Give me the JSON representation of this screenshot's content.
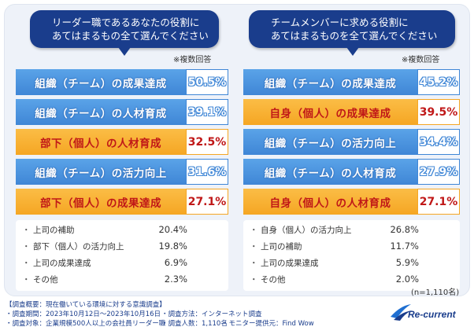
{
  "footer": {
    "line1": "【調査概要：現在働いている環境に対する意識調査】",
    "period": "・調査期間：2023年10月12日〜2023年10月16日",
    "method": "・調査方法：インターネット調査",
    "target": "・調査対象：企業規模500人以上の会社員リーダー職",
    "count": "・調査人数：1,110名",
    "provider": "・モニター提供元：Find Wow"
  },
  "sample_size": "(n=1,110名)",
  "logo_text": "Re-current",
  "chart_data": [
    {
      "type": "bar",
      "title_lines": [
        "リーダー職であるあなたの役割に",
        "あてはまるもの全て選んでください"
      ],
      "note": "※複数回答",
      "bars": [
        {
          "label": "組織（チーム）の成果達成",
          "value": 50.5,
          "display": "50.5%",
          "color": "blue"
        },
        {
          "label": "組織（チーム）の人材育成",
          "value": 39.1,
          "display": "39.1%",
          "color": "blue"
        },
        {
          "label": "部下（個人）の人材育成",
          "value": 32.5,
          "display": "32.5%",
          "color": "orange"
        },
        {
          "label": "組織（チーム）の活力向上",
          "value": 31.6,
          "display": "31.6%",
          "color": "blue"
        },
        {
          "label": "部下（個人）の成果達成",
          "value": 27.1,
          "display": "27.1%",
          "color": "orange"
        }
      ],
      "rest": [
        {
          "label": "上司の補助",
          "value": 20.4,
          "display": "20.4%"
        },
        {
          "label": "部下（個人）の活力向上",
          "value": 19.8,
          "display": "19.8%"
        },
        {
          "label": "上司の成果達成",
          "value": 6.9,
          "display": "6.9%"
        },
        {
          "label": "その他",
          "value": 2.3,
          "display": "2.3%"
        }
      ]
    },
    {
      "type": "bar",
      "title_lines": [
        "チームメンバーに求める役割に",
        "あてはまるものを全て選んでください"
      ],
      "note": "※複数回答",
      "bars": [
        {
          "label": "組織（チーム）の成果達成",
          "value": 45.2,
          "display": "45.2%",
          "color": "blue"
        },
        {
          "label": "自身（個人）の成果達成",
          "value": 39.5,
          "display": "39.5%",
          "color": "orange"
        },
        {
          "label": "組織（チーム）の活力向上",
          "value": 34.4,
          "display": "34.4%",
          "color": "blue"
        },
        {
          "label": "組織（チーム）の人材育成",
          "value": 27.9,
          "display": "27.9%",
          "color": "blue"
        },
        {
          "label": "自身（個人）の人材育成",
          "value": 27.1,
          "display": "27.1%",
          "color": "orange"
        }
      ],
      "rest": [
        {
          "label": "自身（個人）の活力向上",
          "value": 26.8,
          "display": "26.8%"
        },
        {
          "label": "上司の補助",
          "value": 11.7,
          "display": "11.7%"
        },
        {
          "label": "上司の成果達成",
          "value": 5.9,
          "display": "5.9%"
        },
        {
          "label": "その他",
          "value": 2.0,
          "display": "2.0%"
        }
      ]
    }
  ]
}
